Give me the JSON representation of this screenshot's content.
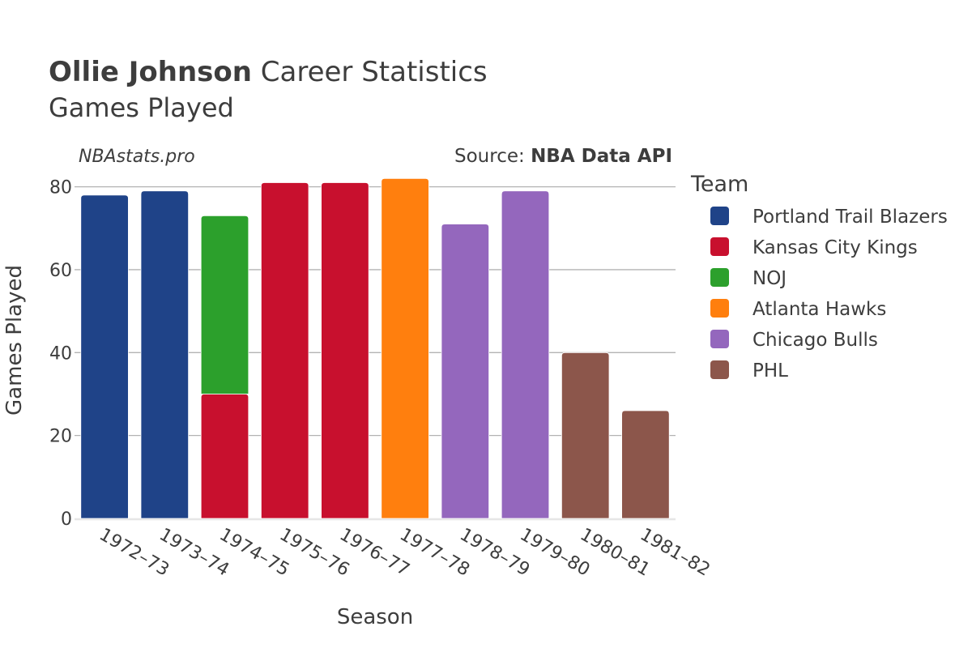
{
  "title": {
    "player_name": "Ollie Johnson",
    "suffix": " Career Statistics",
    "subtitle": "Games Played"
  },
  "watermark": "NBAstats.pro",
  "source": {
    "prefix": "Source: ",
    "name": "NBA Data API"
  },
  "legend_title": "Team",
  "chart_data": {
    "type": "bar",
    "stacked": true,
    "categories": [
      "1972–73",
      "1973–74",
      "1974–75",
      "1975–76",
      "1976–77",
      "1977–78",
      "1978–79",
      "1979–80",
      "1980–81",
      "1981–82"
    ],
    "xlabel": "Season",
    "ylabel": "Games Played",
    "ylim": [
      0,
      85
    ],
    "yticks": [
      0,
      20,
      40,
      60,
      80
    ],
    "grid": true,
    "legend_position": "right",
    "series": [
      {
        "name": "Portland Trail Blazers",
        "color": "#1f4388",
        "values": [
          78,
          79,
          0,
          0,
          0,
          0,
          0,
          0,
          0,
          0
        ]
      },
      {
        "name": "Kansas City Kings",
        "color": "#c8102e",
        "values": [
          0,
          0,
          30,
          81,
          81,
          0,
          0,
          0,
          0,
          0
        ]
      },
      {
        "name": "NOJ",
        "color": "#2ca02c",
        "values": [
          0,
          0,
          43,
          0,
          0,
          0,
          0,
          0,
          0,
          0
        ]
      },
      {
        "name": "Atlanta Hawks",
        "color": "#ff7f0e",
        "values": [
          0,
          0,
          0,
          0,
          0,
          82,
          0,
          0,
          0,
          0
        ]
      },
      {
        "name": "Chicago Bulls",
        "color": "#9467bd",
        "values": [
          0,
          0,
          0,
          0,
          0,
          0,
          71,
          79,
          0,
          0
        ]
      },
      {
        "name": "PHL",
        "color": "#8c564b",
        "values": [
          0,
          0,
          0,
          0,
          0,
          0,
          0,
          0,
          40,
          26
        ]
      }
    ]
  }
}
